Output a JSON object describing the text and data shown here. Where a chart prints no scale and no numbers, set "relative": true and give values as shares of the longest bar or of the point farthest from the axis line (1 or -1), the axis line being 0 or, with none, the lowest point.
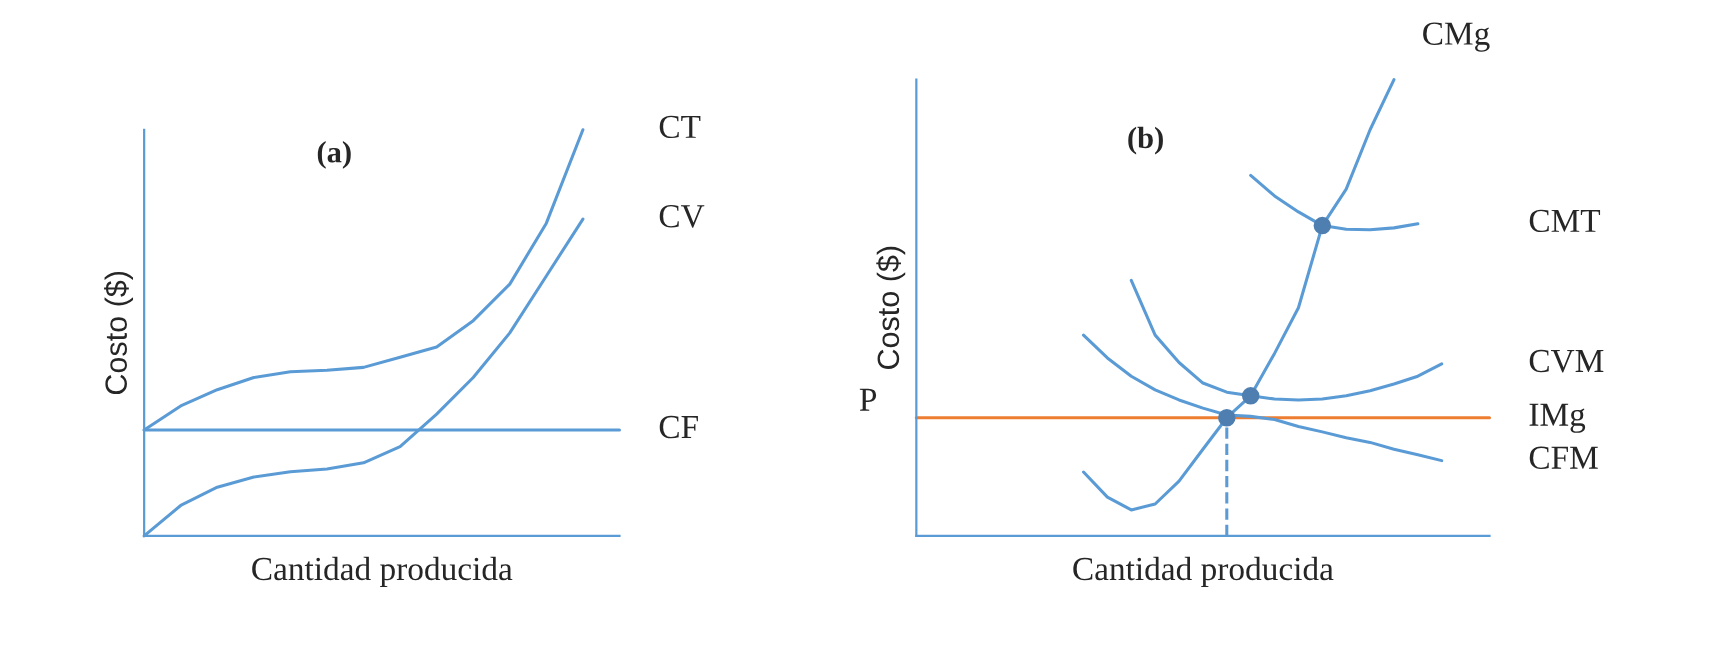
{
  "chart_data": [
    {
      "type": "line",
      "title": "(a)",
      "xlabel": "Cantidad producida",
      "ylabel": "Costo ($)",
      "relative": true,
      "categories": [
        null,
        null,
        null,
        null,
        null,
        null,
        null,
        null,
        null,
        null,
        null,
        null,
        null,
        null
      ],
      "series": [
        {
          "name": "CT",
          "color": "#5b9bd5",
          "values": [
            0.261,
            0.32,
            0.36,
            0.39,
            0.404,
            0.408,
            0.415,
            0.44,
            0.465,
            0.53,
            0.62,
            0.77,
            1.0,
            null
          ]
        },
        {
          "name": "CV",
          "color": "#5b9bd5",
          "values": [
            0,
            0.075,
            0.12,
            0.145,
            0.158,
            0.165,
            0.18,
            0.22,
            0.3,
            0.39,
            0.5,
            0.64,
            0.78,
            null
          ]
        },
        {
          "name": "CF",
          "color": "#5b9bd5",
          "values": [
            0.261,
            0.261,
            0.261,
            0.261,
            0.261,
            0.261,
            0.261,
            0.261,
            0.261,
            0.261,
            0.261,
            0.261,
            0.261,
            0.261
          ]
        }
      ]
    },
    {
      "type": "line",
      "title": "(b)",
      "xlabel": "Cantidad producida",
      "ylabel": "Costo ($)",
      "relative": true,
      "annotations": [
        "P"
      ],
      "categories": [
        null,
        null,
        null,
        null,
        null,
        null,
        null,
        null,
        null,
        null,
        null,
        null,
        null,
        null,
        null,
        null,
        null,
        null,
        null,
        null,
        null,
        null,
        null,
        null,
        null
      ],
      "series": [
        {
          "name": "CMg",
          "color": "#5b9bd5",
          "values": [
            null,
            null,
            null,
            null,
            null,
            null,
            null,
            0.14,
            0.085,
            0.057,
            0.07,
            0.12,
            0.19,
            0.259,
            0.307,
            0.4,
            0.5,
            0.68,
            0.76,
            0.89,
            1.0,
            null,
            null,
            null,
            null
          ]
        },
        {
          "name": "CMT",
          "color": "#5b9bd5",
          "values": [
            null,
            null,
            null,
            null,
            null,
            null,
            null,
            null,
            null,
            null,
            null,
            null,
            null,
            null,
            0.79,
            0.745,
            0.71,
            0.68,
            0.672,
            0.671,
            0.675,
            0.684,
            null,
            null,
            null
          ]
        },
        {
          "name": "CVM",
          "color": "#5b9bd5",
          "values": [
            null,
            null,
            null,
            null,
            null,
            null,
            null,
            null,
            null,
            0.56,
            0.44,
            0.38,
            0.335,
            0.315,
            0.307,
            0.3,
            0.298,
            0.3,
            0.307,
            0.318,
            0.333,
            0.35,
            0.377,
            null,
            null
          ]
        },
        {
          "name": "IMg",
          "color": "#ed7d31",
          "values": [
            0.259,
            0.259,
            0.259,
            0.259,
            0.259,
            0.259,
            0.259,
            0.259,
            0.259,
            0.259,
            0.259,
            0.259,
            0.259,
            0.259,
            0.259,
            0.259,
            0.259,
            0.259,
            0.259,
            0.259,
            0.259,
            0.259,
            0.259,
            0.259,
            0.259
          ]
        },
        {
          "name": "CFM",
          "color": "#5b9bd5",
          "values": [
            null,
            null,
            null,
            null,
            null,
            null,
            null,
            0.44,
            0.39,
            0.35,
            0.32,
            0.298,
            0.28,
            0.265,
            0.262,
            0.255,
            0.24,
            0.228,
            0.215,
            0.205,
            0.19,
            0.178,
            0.165,
            null,
            null
          ]
        }
      ]
    }
  ]
}
